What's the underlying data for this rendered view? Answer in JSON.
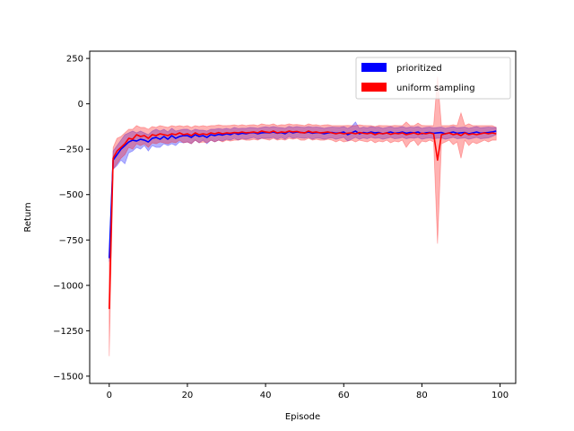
{
  "chart_data": {
    "type": "line",
    "xlabel": "Episode",
    "ylabel": "Return",
    "xlim": [
      -5,
      104
    ],
    "ylim": [
      -1540,
      290
    ],
    "xticks": [
      0,
      20,
      40,
      60,
      80,
      100
    ],
    "yticks": [
      250,
      0,
      -250,
      -500,
      -750,
      -1000,
      -1250,
      -1500
    ],
    "xtick_labels": [
      "0",
      "20",
      "40",
      "60",
      "80",
      "100"
    ],
    "ytick_labels": [
      "250",
      "0",
      "−250",
      "−500",
      "−750",
      "−1000",
      "−1250",
      "−1500"
    ],
    "grid": false,
    "legend_position": "upper right",
    "series": [
      {
        "name": "prioritized",
        "color": "#0000ff",
        "band_color": "#0000ff",
        "x": [
          0,
          1,
          2,
          3,
          4,
          5,
          6,
          7,
          8,
          9,
          10,
          11,
          12,
          13,
          14,
          15,
          16,
          17,
          18,
          19,
          20,
          21,
          22,
          23,
          24,
          25,
          26,
          27,
          28,
          29,
          30,
          31,
          32,
          33,
          34,
          35,
          36,
          37,
          38,
          39,
          40,
          41,
          42,
          43,
          44,
          45,
          46,
          47,
          48,
          49,
          50,
          51,
          52,
          53,
          54,
          55,
          56,
          57,
          58,
          59,
          60,
          61,
          62,
          63,
          64,
          65,
          66,
          67,
          68,
          69,
          70,
          71,
          72,
          73,
          74,
          75,
          76,
          77,
          78,
          79,
          80,
          81,
          82,
          83,
          84,
          85,
          86,
          87,
          88,
          89,
          90,
          91,
          92,
          93,
          94,
          95,
          96,
          97,
          98,
          99
        ],
        "mean": [
          -850,
          -310,
          -280,
          -250,
          -230,
          -210,
          -200,
          -205,
          -195,
          -200,
          -210,
          -190,
          -185,
          -195,
          -180,
          -195,
          -175,
          -190,
          -180,
          -175,
          -175,
          -185,
          -170,
          -180,
          -175,
          -185,
          -170,
          -175,
          -168,
          -172,
          -165,
          -170,
          -160,
          -168,
          -162,
          -165,
          -160,
          -158,
          -165,
          -160,
          -158,
          -160,
          -155,
          -162,
          -158,
          -165,
          -152,
          -160,
          -155,
          -158,
          -160,
          -155,
          -162,
          -158,
          -160,
          -165,
          -160,
          -158,
          -162,
          -160,
          -155,
          -170,
          -160,
          -150,
          -165,
          -158,
          -162,
          -155,
          -160,
          -158,
          -165,
          -160,
          -155,
          -162,
          -160,
          -155,
          -162,
          -158,
          -160,
          -155,
          -165,
          -160,
          -158,
          -162,
          -160,
          -158,
          -165,
          -160,
          -155,
          -162,
          -160,
          -158,
          -165,
          -160,
          -155,
          -162,
          -160,
          -158,
          -155,
          -150
        ],
        "lower": [
          -870,
          -360,
          -340,
          -310,
          -330,
          -270,
          -260,
          -240,
          -250,
          -230,
          -260,
          -230,
          -240,
          -240,
          -220,
          -230,
          -220,
          -230,
          -210,
          -215,
          -210,
          -220,
          -200,
          -215,
          -200,
          -220,
          -200,
          -210,
          -200,
          -205,
          -195,
          -200,
          -190,
          -200,
          -190,
          -195,
          -190,
          -185,
          -195,
          -190,
          -190,
          -190,
          -185,
          -195,
          -185,
          -195,
          -180,
          -190,
          -185,
          -188,
          -190,
          -185,
          -195,
          -188,
          -190,
          -195,
          -190,
          -188,
          -195,
          -190,
          -185,
          -205,
          -195,
          -185,
          -195,
          -188,
          -192,
          -185,
          -190,
          -188,
          -195,
          -190,
          -185,
          -192,
          -190,
          -185,
          -192,
          -188,
          -190,
          -185,
          -195,
          -190,
          -188,
          -192,
          -190,
          -188,
          -195,
          -190,
          -185,
          -192,
          -190,
          -188,
          -195,
          -190,
          -185,
          -192,
          -190,
          -188,
          -180,
          -170
        ],
        "upper": [
          -830,
          -260,
          -230,
          -200,
          -170,
          -160,
          -150,
          -160,
          -150,
          -160,
          -170,
          -150,
          -140,
          -150,
          -140,
          -155,
          -135,
          -150,
          -145,
          -140,
          -140,
          -150,
          -140,
          -145,
          -145,
          -150,
          -140,
          -140,
          -136,
          -140,
          -135,
          -140,
          -130,
          -136,
          -134,
          -135,
          -130,
          -131,
          -135,
          -130,
          -126,
          -130,
          -125,
          -129,
          -131,
          -135,
          -124,
          -130,
          -125,
          -128,
          -130,
          -125,
          -129,
          -128,
          -130,
          -135,
          -130,
          -128,
          -129,
          -130,
          -125,
          -135,
          -125,
          -100,
          -135,
          -128,
          -132,
          -125,
          -130,
          -128,
          -135,
          -130,
          -125,
          -132,
          -130,
          -125,
          -132,
          -128,
          -130,
          -125,
          -135,
          -130,
          -128,
          -132,
          -130,
          -128,
          -135,
          -130,
          -125,
          -132,
          -130,
          -128,
          -135,
          -130,
          -125,
          -132,
          -130,
          -128,
          -130,
          -130
        ]
      },
      {
        "name": "uniform sampling",
        "color": "#ff0000",
        "band_color": "#ff0000",
        "x": [
          0,
          1,
          2,
          3,
          4,
          5,
          6,
          7,
          8,
          9,
          10,
          11,
          12,
          13,
          14,
          15,
          16,
          17,
          18,
          19,
          20,
          21,
          22,
          23,
          24,
          25,
          26,
          27,
          28,
          29,
          30,
          31,
          32,
          33,
          34,
          35,
          36,
          37,
          38,
          39,
          40,
          41,
          42,
          43,
          44,
          45,
          46,
          47,
          48,
          49,
          50,
          51,
          52,
          53,
          54,
          55,
          56,
          57,
          58,
          59,
          60,
          61,
          62,
          63,
          64,
          65,
          66,
          67,
          68,
          69,
          70,
          71,
          72,
          73,
          74,
          75,
          76,
          77,
          78,
          79,
          80,
          81,
          82,
          83,
          84,
          85,
          86,
          87,
          88,
          89,
          90,
          91,
          92,
          93,
          94,
          95,
          96,
          97,
          98,
          99
        ],
        "mean": [
          -1130,
          -300,
          -260,
          -240,
          -220,
          -190,
          -195,
          -170,
          -180,
          -175,
          -190,
          -170,
          -175,
          -165,
          -170,
          -175,
          -165,
          -170,
          -160,
          -170,
          -165,
          -175,
          -160,
          -170,
          -165,
          -170,
          -160,
          -165,
          -158,
          -165,
          -160,
          -162,
          -158,
          -160,
          -155,
          -160,
          -158,
          -155,
          -160,
          -150,
          -155,
          -158,
          -150,
          -160,
          -155,
          -158,
          -150,
          -155,
          -152,
          -158,
          -160,
          -150,
          -158,
          -155,
          -160,
          -158,
          -155,
          -160,
          -165,
          -160,
          -165,
          -162,
          -160,
          -165,
          -158,
          -162,
          -165,
          -160,
          -170,
          -162,
          -165,
          -160,
          -168,
          -162,
          -165,
          -160,
          -170,
          -165,
          -160,
          -168,
          -162,
          -165,
          -160,
          -165,
          -310,
          -170,
          -165,
          -160,
          -170,
          -165,
          -175,
          -160,
          -170,
          -165,
          -170,
          -165,
          -160,
          -165,
          -160,
          -165
        ],
        "lower": [
          -1390,
          -360,
          -330,
          -300,
          -280,
          -240,
          -250,
          -220,
          -230,
          -220,
          -240,
          -215,
          -220,
          -210,
          -215,
          -220,
          -210,
          -215,
          -200,
          -215,
          -210,
          -220,
          -200,
          -215,
          -210,
          -215,
          -200,
          -210,
          -200,
          -210,
          -200,
          -205,
          -200,
          -200,
          -195,
          -200,
          -200,
          -195,
          -200,
          -190,
          -195,
          -200,
          -190,
          -200,
          -195,
          -200,
          -190,
          -195,
          -190,
          -200,
          -200,
          -190,
          -200,
          -195,
          -200,
          -200,
          -195,
          -200,
          -210,
          -200,
          -210,
          -205,
          -200,
          -210,
          -200,
          -205,
          -210,
          -200,
          -215,
          -205,
          -210,
          -200,
          -215,
          -205,
          -210,
          -200,
          -240,
          -210,
          -200,
          -230,
          -205,
          -210,
          -200,
          -210,
          -770,
          -220,
          -210,
          -200,
          -225,
          -210,
          -300,
          -200,
          -230,
          -210,
          -220,
          -210,
          -200,
          -210,
          -200,
          -200
        ],
        "upper": [
          -870,
          -240,
          -190,
          -180,
          -160,
          -140,
          -140,
          -120,
          -130,
          -130,
          -140,
          -125,
          -130,
          -120,
          -125,
          -130,
          -120,
          -125,
          -120,
          -125,
          -120,
          -130,
          -120,
          -125,
          -120,
          -125,
          -120,
          -120,
          -116,
          -120,
          -120,
          -119,
          -116,
          -120,
          -115,
          -120,
          -116,
          -115,
          -120,
          -110,
          -115,
          -116,
          -110,
          -120,
          -115,
          -116,
          -110,
          -115,
          -114,
          -116,
          -120,
          -110,
          -116,
          -115,
          -120,
          -116,
          -115,
          -120,
          -120,
          -120,
          -120,
          -119,
          -120,
          -120,
          -116,
          -119,
          -120,
          -120,
          -125,
          -119,
          -120,
          -120,
          -121,
          -119,
          -120,
          -120,
          -100,
          -120,
          -120,
          -106,
          -119,
          -120,
          -120,
          -120,
          150,
          -120,
          -120,
          -120,
          -115,
          -120,
          -50,
          -120,
          -110,
          -120,
          -120,
          -120,
          -120,
          -120,
          -120,
          -130
        ]
      }
    ]
  }
}
